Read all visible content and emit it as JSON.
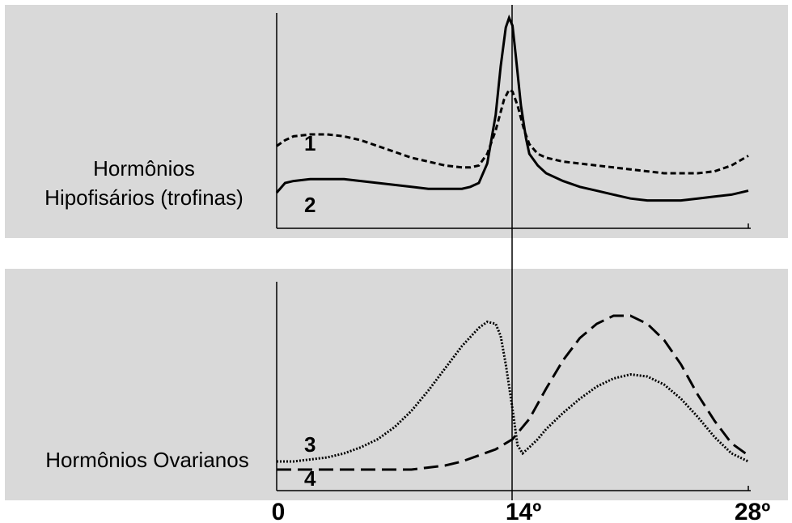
{
  "chart_data": [
    {
      "type": "line",
      "panel": "top",
      "ylabel_lines": [
        "Hormônios",
        "Hipofisários (trofinas)"
      ],
      "x_ticks": [
        "0",
        "14º",
        "28º"
      ],
      "xlim": [
        0,
        28
      ],
      "ylim": [
        0,
        100
      ],
      "grid": false,
      "background": "#d9d9d9",
      "series": [
        {
          "label": "1",
          "style": "dashed",
          "x": [
            0,
            0.5,
            1,
            2,
            3,
            4,
            5,
            6,
            7,
            8,
            9,
            10,
            11,
            11.5,
            12,
            12.5,
            13,
            13.5,
            13.8,
            14,
            14.3,
            14.7,
            15,
            15.5,
            16,
            17,
            18,
            19,
            20,
            21,
            22,
            23,
            24,
            25,
            26,
            27,
            28
          ],
          "values": [
            34,
            37,
            39,
            40,
            40,
            39,
            37,
            34,
            31,
            28,
            26,
            24,
            23,
            23,
            24,
            30,
            42,
            58,
            63,
            62,
            55,
            42,
            35,
            30,
            28,
            26,
            25,
            24,
            23,
            22,
            21,
            20,
            20,
            20,
            21,
            24,
            29
          ]
        },
        {
          "label": "2",
          "style": "solid",
          "x": [
            0,
            0.5,
            1,
            2,
            3,
            4,
            5,
            6,
            7,
            8,
            9,
            10,
            11,
            11.5,
            12,
            12.5,
            13,
            13.3,
            13.6,
            13.8,
            14,
            14.2,
            14.5,
            14.8,
            15,
            15.5,
            16,
            17,
            18,
            19,
            20,
            21,
            22,
            23,
            24,
            25,
            26,
            27,
            28
          ],
          "values": [
            10,
            15,
            16,
            17,
            17,
            17,
            16,
            15,
            14,
            13,
            12,
            12,
            12,
            13,
            15,
            25,
            50,
            75,
            95,
            100,
            96,
            80,
            55,
            38,
            30,
            24,
            20,
            16,
            13,
            11,
            9,
            7,
            6,
            6,
            6,
            7,
            8,
            9,
            11
          ]
        }
      ]
    },
    {
      "type": "line",
      "panel": "bottom",
      "ylabel": "Hormônios Ovarianos",
      "x_ticks": [
        "0",
        "14º",
        "28º"
      ],
      "xlim": [
        0,
        28
      ],
      "ylim": [
        0,
        100
      ],
      "grid": false,
      "background": "#d9d9d9",
      "series": [
        {
          "label": "3",
          "style": "dotted",
          "x": [
            0,
            1,
            2,
            3,
            4,
            5,
            6,
            7,
            8,
            9,
            10,
            11,
            12,
            12.5,
            13,
            13.3,
            13.6,
            14,
            14.3,
            14.6,
            15,
            15.5,
            16,
            17,
            18,
            19,
            20,
            21,
            22,
            23,
            24,
            25,
            26,
            27,
            28
          ],
          "values": [
            12,
            12,
            13,
            14,
            16,
            19,
            23,
            29,
            37,
            47,
            58,
            69,
            78,
            81,
            80,
            74,
            60,
            38,
            20,
            16,
            19,
            23,
            28,
            36,
            43,
            49,
            53,
            55,
            54,
            50,
            43,
            34,
            24,
            16,
            12
          ]
        },
        {
          "label": "4",
          "style": "long-dash",
          "x": [
            0,
            1,
            2,
            3,
            4,
            5,
            6,
            7,
            8,
            9,
            10,
            11,
            12,
            13,
            14,
            15,
            16,
            17,
            18,
            19,
            20,
            21,
            22,
            23,
            24,
            25,
            26,
            27,
            28
          ],
          "values": [
            8,
            8,
            8,
            8,
            8,
            8,
            8,
            8,
            8,
            9,
            10,
            12,
            15,
            18,
            23,
            33,
            48,
            62,
            73,
            80,
            84,
            84,
            80,
            72,
            60,
            45,
            32,
            21,
            15
          ]
        }
      ]
    }
  ]
}
